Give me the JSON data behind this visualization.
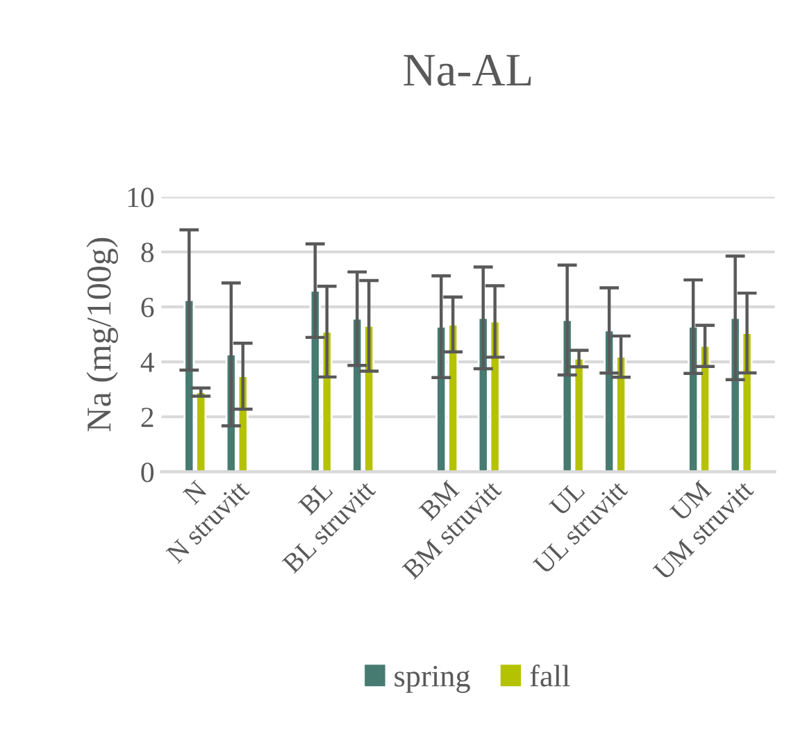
{
  "chart_data": {
    "type": "bar",
    "title": "Na-AL",
    "ylabel": "Na (mg/100g)",
    "categories": [
      "N",
      "N struvitt",
      "BL",
      "BL struvitt",
      "BM",
      "BM struvitt",
      "UL",
      "UL struvitt",
      "UM",
      "UM struvitt"
    ],
    "series": [
      {
        "name": "spring",
        "color": "#467b72",
        "values": [
          6.25,
          4.27,
          6.59,
          5.57,
          5.28,
          5.6,
          5.52,
          5.14,
          5.28,
          5.6
        ],
        "errors": [
          2.55,
          2.6,
          1.7,
          1.7,
          1.85,
          1.85,
          2.0,
          1.55,
          1.7,
          2.25
        ]
      },
      {
        "name": "fall",
        "color": "#b5c200",
        "values": [
          2.9,
          3.48,
          5.1,
          5.31,
          5.36,
          5.47,
          4.12,
          4.19,
          4.58,
          5.05
        ],
        "errors": [
          0.15,
          1.2,
          1.65,
          1.65,
          1.0,
          1.3,
          0.3,
          0.75,
          0.75,
          1.45
        ]
      }
    ],
    "ylim": [
      0,
      10
    ],
    "yticks": [
      0,
      2,
      4,
      6,
      8,
      10
    ],
    "grid": "y",
    "legend": "bottom"
  }
}
